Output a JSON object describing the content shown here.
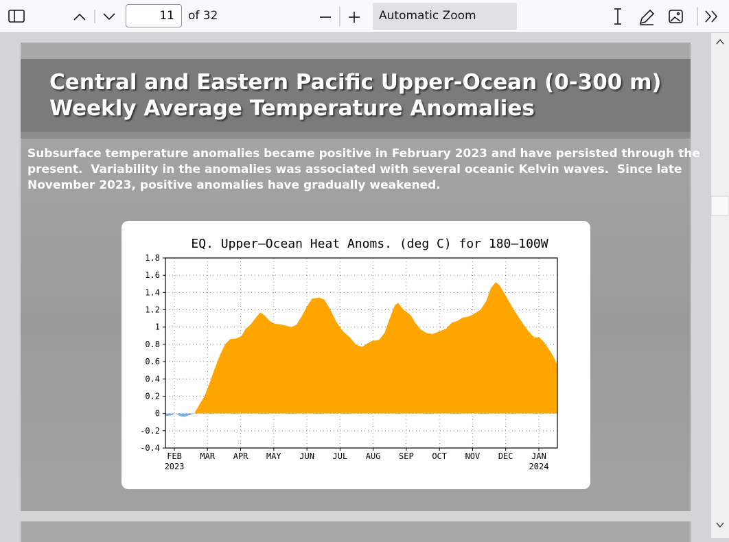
{
  "toolbar": {
    "page_number": "11",
    "page_count": "of 32",
    "zoom": "Automatic Zoom"
  },
  "slide": {
    "title": [
      "Central and Eastern Pacific Upper-Ocean (0-300 m)",
      "Weekly Average Temperature Anomalies"
    ],
    "text": [
      "Subsurface temperature anomalies became positive in February 2023 and have persisted through the",
      "present.  Variability in the anomalies was associated with several oceanic Kelvin waves.  Since late",
      "November 2023, positive anomalies have gradually weakened."
    ]
  },
  "chart_data": {
    "type": "area",
    "title": "EQ. Upper–Ocean Heat Anoms. (deg C) for 180–100W",
    "x": [
      -0.27,
      -0.08,
      0.04,
      0.17,
      0.29,
      0.46,
      0.6,
      0.75,
      0.91,
      1.06,
      1.2,
      1.37,
      1.53,
      1.68,
      1.89,
      2.03,
      2.15,
      2.3,
      2.44,
      2.59,
      2.71,
      2.88,
      3.02,
      3.23,
      3.54,
      3.69,
      3.85,
      4.02,
      4.16,
      4.37,
      4.52,
      4.68,
      4.89,
      5.09,
      5.3,
      5.47,
      5.66,
      5.82,
      5.97,
      6.17,
      6.34,
      6.5,
      6.65,
      6.75,
      6.92,
      7.13,
      7.27,
      7.44,
      7.62,
      7.79,
      7.99,
      8.2,
      8.37,
      8.54,
      8.7,
      8.87,
      9.03,
      9.24,
      9.41,
      9.55,
      9.7,
      9.82,
      9.99,
      10.17,
      10.38,
      10.54,
      10.69,
      10.86,
      11.02,
      11.17,
      11.31,
      11.44,
      11.56
    ],
    "values": [
      -0.03,
      -0.02,
      0.0,
      -0.03,
      -0.04,
      -0.02,
      0.0,
      0.1,
      0.2,
      0.35,
      0.5,
      0.67,
      0.8,
      0.86,
      0.87,
      0.9,
      0.98,
      1.03,
      1.1,
      1.17,
      1.14,
      1.07,
      1.04,
      1.03,
      1.0,
      1.03,
      1.13,
      1.25,
      1.33,
      1.34,
      1.32,
      1.22,
      1.06,
      0.95,
      0.88,
      0.8,
      0.77,
      0.81,
      0.84,
      0.85,
      0.93,
      1.1,
      1.25,
      1.28,
      1.2,
      1.14,
      1.05,
      0.97,
      0.93,
      0.92,
      0.95,
      0.98,
      1.05,
      1.07,
      1.11,
      1.12,
      1.15,
      1.2,
      1.3,
      1.45,
      1.52,
      1.48,
      1.37,
      1.25,
      1.12,
      1.03,
      0.95,
      0.88,
      0.88,
      0.82,
      0.74,
      0.66,
      0.56
    ],
    "positive_color": "#ffa500",
    "negative_color": "#6fb2ec",
    "xlim": [
      -0.27,
      11.56
    ],
    "ylim": [
      -0.4,
      1.8
    ],
    "yticks": [
      -0.4,
      -0.2,
      0,
      0.2,
      0.4,
      0.6,
      0.8,
      1,
      1.2,
      1.4,
      1.6,
      1.8
    ],
    "xticks": [
      {
        "value": 0,
        "label": "FEB"
      },
      {
        "value": 1,
        "label": "MAR"
      },
      {
        "value": 2,
        "label": "APR"
      },
      {
        "value": 3,
        "label": "MAY"
      },
      {
        "value": 4,
        "label": "JUN"
      },
      {
        "value": 5,
        "label": "JUL"
      },
      {
        "value": 6,
        "label": "AUG"
      },
      {
        "value": 7,
        "label": "SEP"
      },
      {
        "value": 8,
        "label": "OCT"
      },
      {
        "value": 9,
        "label": "NOV"
      },
      {
        "value": 10,
        "label": "DEC"
      },
      {
        "value": 11,
        "label": "JAN"
      }
    ],
    "xticks_year": [
      {
        "value": 0,
        "label": "2023"
      },
      {
        "value": 11,
        "label": "2024"
      }
    ],
    "grid": true
  }
}
